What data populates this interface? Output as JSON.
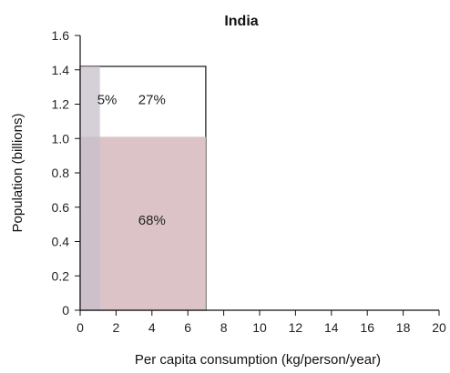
{
  "chart_data": {
    "type": "bar",
    "title": "India",
    "xlabel": "Per capita consumption (kg/person/year)",
    "ylabel": "Population (billions)",
    "xlim": [
      0,
      20
    ],
    "ylim": [
      0,
      1.6
    ],
    "x_ticks": [
      "0",
      "2",
      "4",
      "6",
      "8",
      "10",
      "12",
      "14",
      "16",
      "18",
      "20"
    ],
    "y_ticks": [
      "0",
      "0.2",
      "0.4",
      "0.6",
      "0.8",
      "1.0",
      "1.2",
      "1.4",
      "1.6"
    ],
    "blocks": [
      {
        "x0": 0,
        "x1": 7.0,
        "y0": 0,
        "y1": 1.42,
        "label": "27%",
        "label_x": 4.0,
        "label_y": 1.22,
        "color": "#ffffff",
        "outline": true
      },
      {
        "x0": 0,
        "x1": 7.0,
        "y0": 0,
        "y1": 1.01,
        "label": "68%",
        "label_x": 4.0,
        "label_y": 0.52,
        "color": "#dcc3c8",
        "outline": false
      },
      {
        "x0": 0,
        "x1": 1.1,
        "y0": 0,
        "y1": 1.42,
        "label": "5%",
        "label_x": 1.5,
        "label_y": 1.22,
        "color": "#c7bfcb",
        "outline": false,
        "opacity": 0.75
      }
    ],
    "grid": false
  }
}
